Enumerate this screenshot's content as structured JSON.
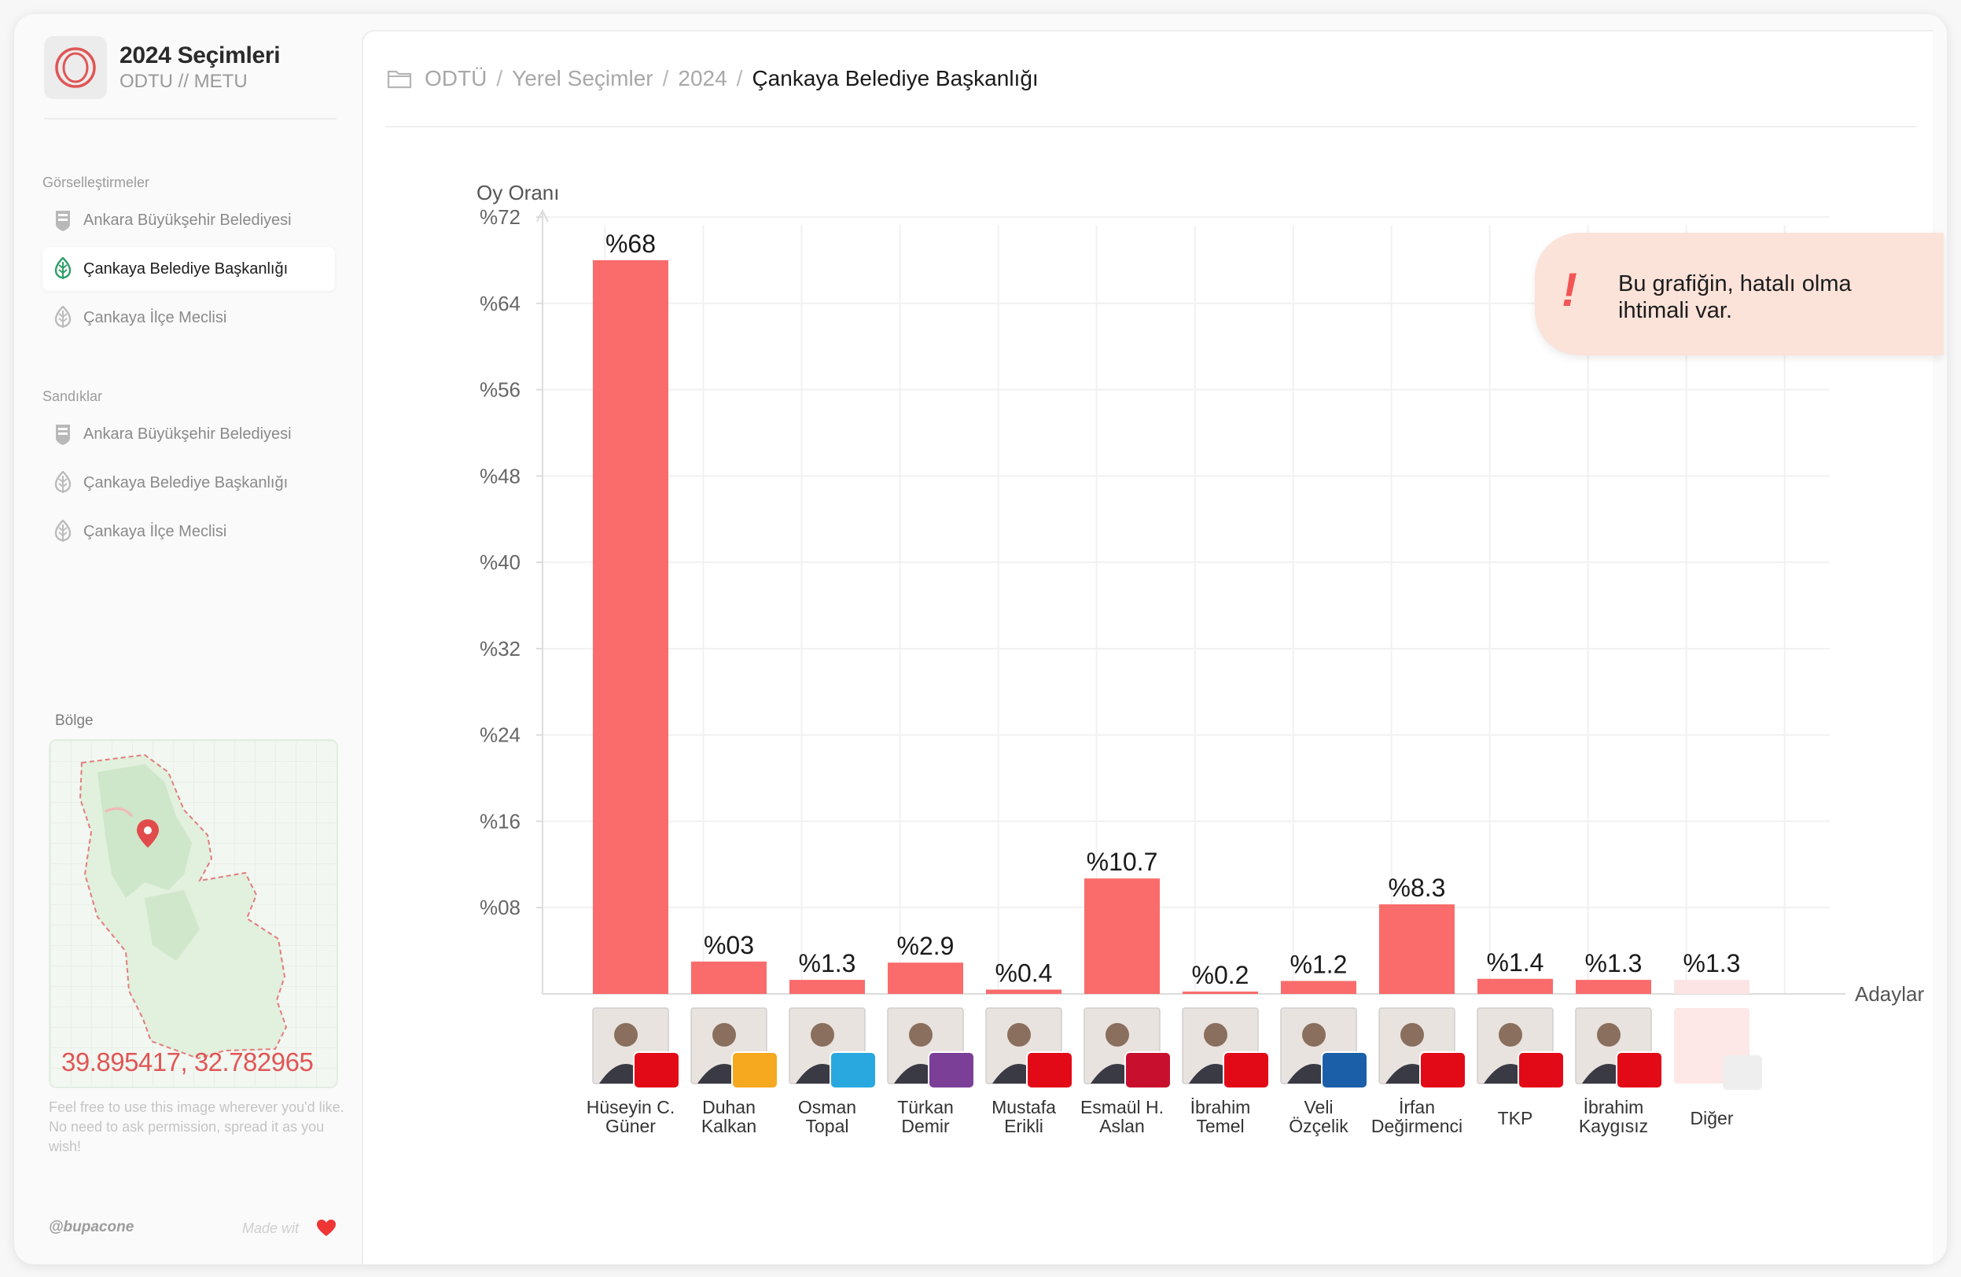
{
  "sidebar": {
    "brand_title": "2024 Seçimleri",
    "brand_subtitle": "ODTU // METU",
    "sections": [
      {
        "label": "Görselleştirmeler",
        "items": [
          {
            "label": "Ankara Büyükşehir Belediyesi",
            "icon": "city-crest-icon",
            "active": false
          },
          {
            "label": "Çankaya Belediye Başkanlığı",
            "icon": "leaf-icon",
            "active": true
          },
          {
            "label": "Çankaya İlçe Meclisi",
            "icon": "leaf-icon",
            "active": false
          }
        ]
      },
      {
        "label": "Sandıklar",
        "items": [
          {
            "label": "Ankara Büyükşehir Belediyesi",
            "icon": "city-crest-icon",
            "active": false
          },
          {
            "label": "Çankaya Belediye Başkanlığı",
            "icon": "leaf-icon",
            "active": false
          },
          {
            "label": "Çankaya İlçe Meclisi",
            "icon": "leaf-icon",
            "active": false
          }
        ]
      }
    ],
    "region_label": "Bölge",
    "coordinates": "39.895417, 32.782965",
    "credit_text": "Feel free to use this image wherever you'd like. No need to ask permission, spread it as you wish!",
    "footer_handle": "@bupacone",
    "footer_made": "Made wit"
  },
  "breadcrumbs": [
    "ODTÜ",
    "Yerel Seçimler",
    "2024",
    "Çankaya Belediye Başkanlığı"
  ],
  "warning_text": "Bu grafiğin, hatalı olma ihtimali var.",
  "colors": {
    "bar": "#fa6b6b",
    "bar_other": "#fde4e4",
    "accent": "#e05656",
    "warning_bg": "#fbe3da",
    "leaf_active": "#2f9e6a"
  },
  "chart_data": {
    "type": "bar",
    "ylabel": "Oy Oranı",
    "xlabel": "Adaylar",
    "ylim": [
      0,
      72
    ],
    "y_ticks": [
      {
        "value": 72,
        "label": "%72"
      },
      {
        "value": 64,
        "label": "%64"
      },
      {
        "value": 56,
        "label": "%56"
      },
      {
        "value": 48,
        "label": "%48"
      },
      {
        "value": 40,
        "label": "%40"
      },
      {
        "value": 32,
        "label": "%32"
      },
      {
        "value": 24,
        "label": "%24"
      },
      {
        "value": 16,
        "label": "%16"
      },
      {
        "value": 8,
        "label": "%08"
      }
    ],
    "grid": true,
    "categories": [
      {
        "name": [
          "Hüseyin C.",
          "Güner"
        ],
        "value": 68,
        "label": "%68",
        "party_color": "#e30a17"
      },
      {
        "name": [
          "Duhan",
          "Kalkan"
        ],
        "value": 3,
        "label": "%03",
        "party_color": "#f6a81e"
      },
      {
        "name": [
          "Osman",
          "Topal"
        ],
        "value": 1.3,
        "label": "%1.3",
        "party_color": "#29a8e0"
      },
      {
        "name": [
          "Türkan",
          "Demir"
        ],
        "value": 2.9,
        "label": "%2.9",
        "party_color": "#7b3f98"
      },
      {
        "name": [
          "Mustafa",
          "Erikli"
        ],
        "value": 0.4,
        "label": "%0.4",
        "party_color": "#e30a17"
      },
      {
        "name": [
          "Esmaül H.",
          "Aslan"
        ],
        "value": 10.7,
        "label": "%10.7",
        "party_color": "#c8102e"
      },
      {
        "name": [
          "İbrahim",
          "Temel"
        ],
        "value": 0.2,
        "label": "%0.2",
        "party_color": "#e30a17"
      },
      {
        "name": [
          "Veli",
          "Özçelik"
        ],
        "value": 1.2,
        "label": "%1.2",
        "party_color": "#1b5fa8"
      },
      {
        "name": [
          "İrfan",
          "Değirmenci"
        ],
        "value": 8.3,
        "label": "%8.3",
        "party_color": "#e30a17"
      },
      {
        "name": [
          "TKP"
        ],
        "value": 1.4,
        "label": "%1.4",
        "party_color": "#e30a17"
      },
      {
        "name": [
          "İbrahim",
          "Kaygısız"
        ],
        "value": 1.3,
        "label": "%1.3",
        "party_color": "#e30a17"
      },
      {
        "name": [
          "Diğer"
        ],
        "value": 1.3,
        "label": "%1.3",
        "party_color": "#eeeeee"
      }
    ]
  }
}
